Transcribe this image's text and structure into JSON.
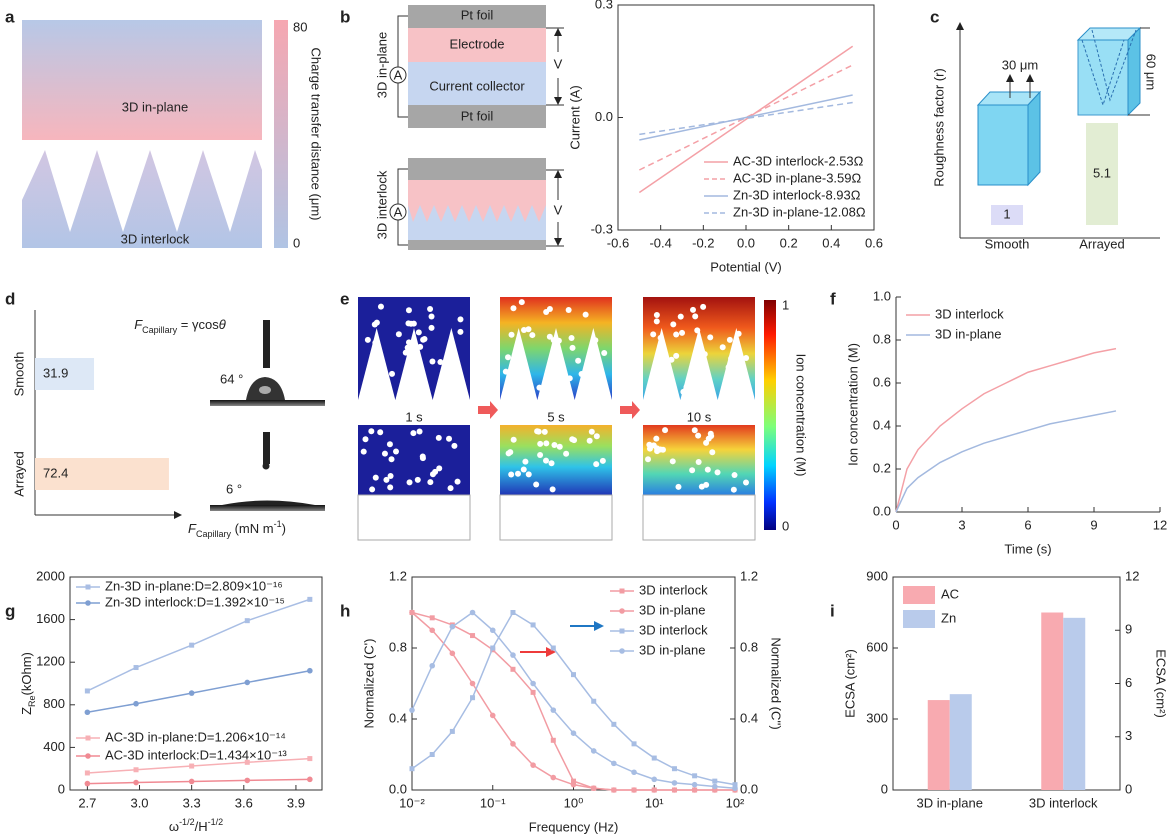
{
  "panel_letters": [
    "a",
    "b",
    "c",
    "d",
    "e",
    "f",
    "g",
    "h",
    "i"
  ],
  "diagrams": {
    "a": {
      "labels": [
        "3D in-plane",
        "3D interlock"
      ],
      "colorbar": {
        "ticks": [
          80,
          0
        ],
        "label": "Charge transfer distance (μm)"
      }
    },
    "b": {
      "in_plane": {
        "title": "3D in-plane",
        "layers": [
          "Pt foil",
          "Electrode",
          "Current collector",
          "Pt foil"
        ],
        "ammeter": "A",
        "voltage": "V"
      },
      "interlock": {
        "title": "3D interlock",
        "ammeter": "A",
        "voltage": "V"
      }
    },
    "c": {
      "dims": [
        "30 μm",
        "60 μm"
      ]
    },
    "d": {
      "formula": [
        {
          "text": "F",
          "style": "italic"
        },
        {
          "text": "Capillary",
          "style": "sub"
        },
        {
          "text": " = γcos",
          "style": "normal"
        },
        {
          "text": "θ",
          "style": "italic"
        }
      ],
      "angles": [
        "64 °",
        "6 °"
      ]
    },
    "e": {
      "times": [
        "1 s",
        "5 s",
        "10 s"
      ],
      "colorbar": {
        "ticks": [
          1,
          0
        ],
        "label": "Ion concentration (M)"
      }
    }
  },
  "chart_data": [
    {
      "type": "line",
      "x": [
        -0.5,
        0.5
      ],
      "series": [
        {
          "name": "AC-3D interlock-2.53Ω",
          "color": "#f4a0a6",
          "dash": false,
          "values": [
            -0.2,
            0.19
          ]
        },
        {
          "name": "AC-3D in-plane-3.59Ω",
          "color": "#f4a0a6",
          "dash": true,
          "values": [
            -0.14,
            0.14
          ]
        },
        {
          "name": "Zn-3D interlock-8.93Ω",
          "color": "#a3b9df",
          "dash": false,
          "values": [
            -0.06,
            0.06
          ]
        },
        {
          "name": "Zn-3D in-plane-12.08Ω",
          "color": "#a3b9df",
          "dash": true,
          "values": [
            -0.045,
            0.04
          ]
        }
      ],
      "xlim": [
        -0.6,
        0.6
      ],
      "xticks": [
        -0.6,
        -0.4,
        -0.2,
        {
          "value": 0,
          "label": "0.0"
        },
        0.2,
        0.4,
        0.6
      ],
      "ylim": [
        -0.3,
        0.3
      ],
      "yticks": [
        -0.3,
        {
          "value": 0,
          "label": "0.0"
        },
        0.3
      ],
      "xlabel": "Potential (V)",
      "ylabel": "Current (A)",
      "legend": "lower right"
    },
    {
      "type": "bar",
      "categories": [
        "Smooth",
        "Arrayed"
      ],
      "values": [
        1,
        5.1
      ],
      "colors": [
        "#dcdcf7",
        "#e2edd3"
      ],
      "ylabel": "Roughness factor (r)"
    },
    {
      "type": "barh",
      "categories": [
        "Smooth",
        "Arrayed"
      ],
      "values": [
        31.9,
        72.4
      ],
      "colors": [
        "#dde8f6",
        "#fbe1cf"
      ],
      "xlabel": [
        {
          "text": "F",
          "style": "italic"
        },
        {
          "text": "Capillary",
          "style": "sub"
        },
        {
          "text": " (mN m",
          "style": "normal"
        },
        {
          "text": "-1",
          "style": "sup"
        },
        {
          "text": ")",
          "style": "normal"
        }
      ]
    },
    {
      "type": "line",
      "x": [
        0,
        0.5,
        1,
        2,
        3,
        4,
        5,
        6,
        7,
        8,
        9,
        10
      ],
      "series": [
        {
          "name": "3D interlock",
          "color": "#f4a0a6",
          "values": [
            0,
            0.2,
            0.29,
            0.4,
            0.48,
            0.55,
            0.6,
            0.65,
            0.68,
            0.71,
            0.74,
            0.76
          ]
        },
        {
          "name": "3D in-plane",
          "color": "#a3b9df",
          "values": [
            0,
            0.11,
            0.16,
            0.23,
            0.28,
            0.32,
            0.35,
            0.38,
            0.41,
            0.43,
            0.45,
            0.47
          ]
        }
      ],
      "xlim": [
        0,
        12
      ],
      "xticks": [
        0,
        3,
        6,
        9,
        12
      ],
      "ylim": [
        0,
        1
      ],
      "yticks": [
        {
          "value": 0,
          "label": "0.0"
        },
        0.2,
        0.4,
        0.6,
        0.8,
        {
          "value": 1,
          "label": "1.0"
        }
      ],
      "xlabel": "Time (s)",
      "ylabel": "Ion concentration (M)",
      "legend": "upper left"
    },
    {
      "type": "line",
      "x": [
        2.7,
        2.98,
        3.3,
        3.62,
        3.98
      ],
      "series": [
        {
          "name": "Zn-3D in-plane:D=2.809×10⁻¹⁶",
          "color": "#a9bee4",
          "marker": "square",
          "values": [
            930,
            1150,
            1360,
            1590,
            1790
          ]
        },
        {
          "name": "Zn-3D interlock:D=1.392×10⁻¹⁵",
          "color": "#7f9fd2",
          "marker": "circle",
          "values": [
            730,
            810,
            910,
            1010,
            1120
          ]
        },
        {
          "name": "AC-3D in-plane:D=1.206×10⁻¹⁴",
          "color": "#f7b0b5",
          "marker": "square",
          "values": [
            160,
            190,
            225,
            260,
            295
          ]
        },
        {
          "name": "AC-3D interlock:D=1.434×10⁻¹³",
          "color": "#f08a93",
          "marker": "circle",
          "values": [
            60,
            70,
            80,
            90,
            100
          ]
        }
      ],
      "xlim": [
        2.6,
        4.05
      ],
      "xticks": [
        2.7,
        {
          "value": 3,
          "label": "3.0"
        },
        3.3,
        3.6,
        3.9
      ],
      "ylim": [
        0,
        2000
      ],
      "yticks": [
        0,
        400,
        800,
        1200,
        1600,
        2000
      ],
      "xlabel": [
        {
          "text": "ω",
          "style": "normal"
        },
        {
          "text": "-1/2",
          "style": "sup"
        },
        {
          "text": "/H",
          "style": "normal"
        },
        {
          "text": "-1/2",
          "style": "sup"
        }
      ],
      "ylabel": [
        {
          "text": "Z",
          "style": "normal"
        },
        {
          "text": "Re",
          "style": "sub"
        },
        {
          "text": "(kOhm)",
          "style": "normal"
        }
      ],
      "legend": "left"
    },
    {
      "type": "line",
      "xscale": "log",
      "x": [
        0.01,
        0.0178,
        0.0316,
        0.0562,
        0.1,
        0.178,
        0.316,
        0.562,
        1,
        1.78,
        3.16,
        5.62,
        10,
        17.8,
        31.6,
        56.2,
        100
      ],
      "series": [
        {
          "name": "3D interlock",
          "color": "#f29ca3",
          "marker": "square",
          "values": [
            1.0,
            0.97,
            0.93,
            0.87,
            0.79,
            0.68,
            0.55,
            0.28,
            0.05,
            0.01,
            0,
            0,
            0,
            0,
            0,
            0,
            0
          ]
        },
        {
          "name": "3D in-plane",
          "color": "#f29ca3",
          "marker": "circle",
          "values": [
            1.0,
            0.9,
            0.77,
            0.6,
            0.42,
            0.26,
            0.14,
            0.07,
            0.03,
            0.01,
            0,
            0,
            0,
            0,
            0,
            0,
            0
          ]
        },
        {
          "name": "3D interlock",
          "color": "#a7bde3",
          "marker": "square",
          "axis": "y2",
          "values": [
            0.12,
            0.2,
            0.33,
            0.52,
            0.8,
            1.0,
            0.93,
            0.8,
            0.65,
            0.5,
            0.37,
            0.26,
            0.18,
            0.12,
            0.08,
            0.05,
            0.03
          ]
        },
        {
          "name": "3D in-plane",
          "color": "#a7bde3",
          "marker": "circle",
          "axis": "y2",
          "values": [
            0.45,
            0.7,
            0.92,
            1.0,
            0.9,
            0.76,
            0.6,
            0.45,
            0.32,
            0.22,
            0.15,
            0.1,
            0.06,
            0.04,
            0.03,
            0.02,
            0.01
          ]
        }
      ],
      "xlim": [
        0.01,
        100
      ],
      "xticks": [
        {
          "value": 0.01,
          "label": "10⁻²"
        },
        {
          "value": 0.1,
          "label": "10⁻¹"
        },
        {
          "value": 1,
          "label": "10⁰"
        },
        {
          "value": 10,
          "label": "10¹"
        },
        {
          "value": 100,
          "label": "10²"
        }
      ],
      "ylim": [
        0,
        1.2
      ],
      "yticks": [
        {
          "value": 0,
          "label": "0.0"
        },
        0.4,
        0.8,
        1.2
      ],
      "y2lim": [
        0,
        1.2
      ],
      "y2ticks": [
        {
          "value": 0,
          "label": "0.0"
        },
        0.4,
        0.8,
        1.2
      ],
      "y2color": "#a7bde3",
      "xlabel": "Frequency (Hz)",
      "ylabel": "Normalized (C')",
      "y2label": "Normalized (C'')",
      "legend": "upper right"
    },
    {
      "type": "bar",
      "categories": [
        "3D in-plane",
        "3D interlock"
      ],
      "series": [
        {
          "name": "AC",
          "color": "#f8aab0",
          "values": [
            380,
            750
          ]
        },
        {
          "name": "Zn",
          "color": "#b9cbeb",
          "axis": "y2",
          "values": [
            5.4,
            9.7
          ]
        }
      ],
      "ylim": [
        0,
        900
      ],
      "yticks": [
        0,
        300,
        600,
        900
      ],
      "y2lim": [
        0,
        12
      ],
      "y2ticks": [
        0,
        3,
        6,
        9,
        12
      ],
      "ycolor": "#f29ca3",
      "y2color": "#a7bde3",
      "ylabel": "ECSA (cm²)",
      "y2label": "ECSA (cm²)",
      "legend": "upper left"
    }
  ]
}
